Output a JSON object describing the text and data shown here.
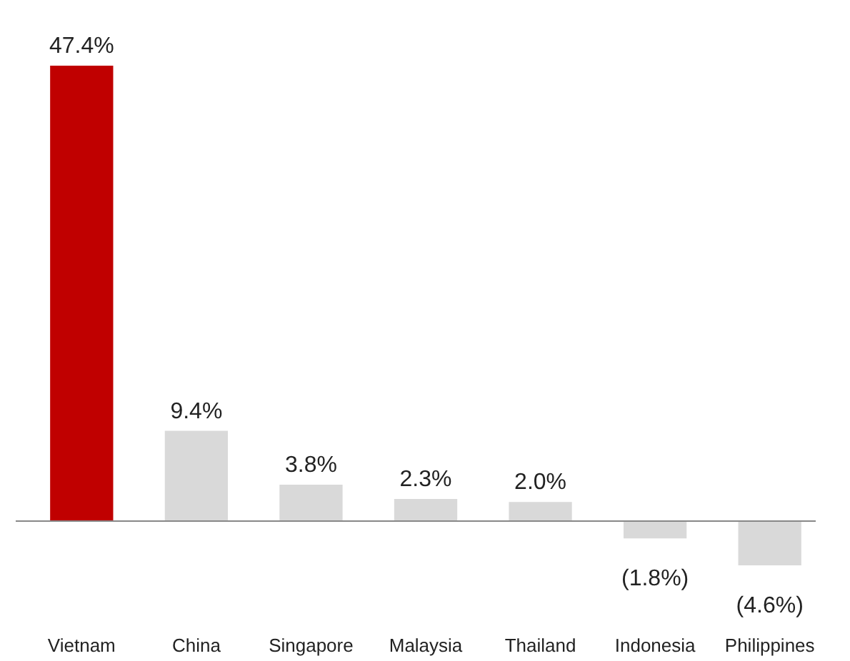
{
  "chart_data": {
    "type": "bar",
    "categories": [
      "Vietnam",
      "China",
      "Singapore",
      "Malaysia",
      "Thailand",
      "Indonesia",
      "Philippines"
    ],
    "values": [
      47.4,
      9.4,
      3.8,
      2.3,
      2.0,
      -1.8,
      -4.6
    ],
    "value_labels": [
      "47.4%",
      "9.4%",
      "3.8%",
      "2.3%",
      "2.0%",
      "(1.8%)",
      "(4.6%)"
    ],
    "colors": [
      "#c00000",
      "#d9d9d9",
      "#d9d9d9",
      "#d9d9d9",
      "#d9d9d9",
      "#d9d9d9",
      "#d9d9d9"
    ],
    "grid": false
  }
}
